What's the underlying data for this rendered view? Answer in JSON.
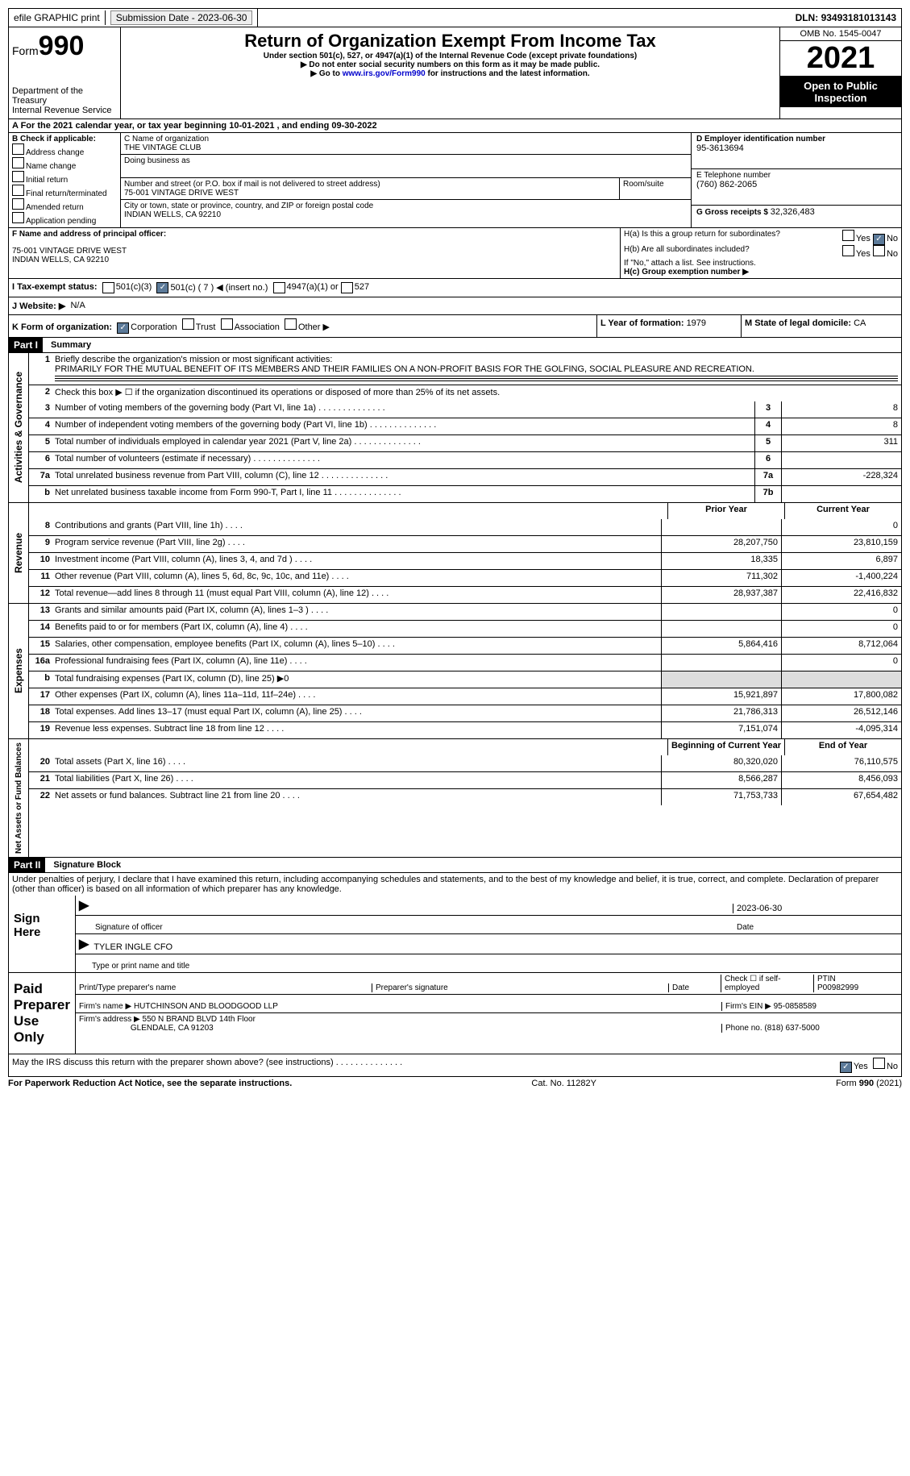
{
  "topbar": {
    "efile": "efile GRAPHIC print",
    "submission_label": "Submission Date - ",
    "submission_date": "2023-06-30",
    "dln_label": "DLN: ",
    "dln": "93493181013143"
  },
  "header": {
    "form_prefix": "Form",
    "form_no": "990",
    "dept": "Department of the Treasury",
    "irs": "Internal Revenue Service",
    "title": "Return of Organization Exempt From Income Tax",
    "subtitle": "Under section 501(c), 527, or 4947(a)(1) of the Internal Revenue Code (except private foundations)",
    "warn1": "▶ Do not enter social security numbers on this form as it may be made public.",
    "warn2_pre": "▶ Go to ",
    "warn2_link": "www.irs.gov/Form990",
    "warn2_post": " for instructions and the latest information.",
    "omb": "OMB No. 1545-0047",
    "year": "2021",
    "open": "Open to Public Inspection"
  },
  "periodA": {
    "text_a": "A For the 2021 calendar year, or tax year beginning ",
    "begin": "10-01-2021",
    "text_b": " , and ending ",
    "end": "09-30-2022"
  },
  "boxB": {
    "label": "B Check if applicable:",
    "items": [
      "Address change",
      "Name change",
      "Initial return",
      "Final return/terminated",
      "Amended return",
      "Application pending"
    ]
  },
  "boxC": {
    "name_label": "C Name of organization",
    "name": "THE VINTAGE CLUB",
    "dba": "Doing business as",
    "addr_label": "Number and street (or P.O. box if mail is not delivered to street address)",
    "room": "Room/suite",
    "addr": "75-001 VINTAGE DRIVE WEST",
    "city_label": "City or town, state or province, country, and ZIP or foreign postal code",
    "city": "INDIAN WELLS, CA  92210"
  },
  "boxD": {
    "label": "D Employer identification number",
    "val": "95-3613694"
  },
  "boxE": {
    "label": "E Telephone number",
    "val": "(760) 862-2065"
  },
  "boxG": {
    "label": "G Gross receipts $ ",
    "val": "32,326,483"
  },
  "boxF": {
    "label": "F  Name and address of principal officer:",
    "l1": "75-001 VINTAGE DRIVE WEST",
    "l2": "INDIAN WELLS, CA  92210"
  },
  "boxH": {
    "a": "H(a)  Is this a group return for subordinates?",
    "b": "H(b)  Are all subordinates included?",
    "note": "If \"No,\" attach a list. See instructions.",
    "c": "H(c)  Group exemption number ▶",
    "yes": "Yes",
    "no": "No"
  },
  "boxI": {
    "label": "I  Tax-exempt status:",
    "o1": "501(c)(3)",
    "o2": "501(c) ( 7 ) ◀ (insert no.)",
    "o3": "4947(a)(1) or",
    "o4": "527"
  },
  "boxJ": {
    "label": "J  Website: ▶",
    "val": "N/A"
  },
  "boxK": {
    "label": "K Form of organization:",
    "o1": "Corporation",
    "o2": "Trust",
    "o3": "Association",
    "o4": "Other ▶"
  },
  "boxL": {
    "label": "L Year of formation: ",
    "val": "1979"
  },
  "boxM": {
    "label": "M State of legal domicile: ",
    "val": "CA"
  },
  "part1": {
    "hdr": "Part I",
    "title": "Summary",
    "l1_label": "Briefly describe the organization's mission or most significant activities:",
    "l1_text": "PRIMARILY FOR THE MUTUAL BENEFIT OF ITS MEMBERS AND THEIR FAMILIES ON A NON-PROFIT BASIS FOR THE GOLFING, SOCIAL PLEASURE AND RECREATION.",
    "l2": "Check this box ▶ ☐  if the organization discontinued its operations or disposed of more than 25% of its net assets.",
    "tabs": {
      "ag": "Activities & Governance",
      "rev": "Revenue",
      "exp": "Expenses",
      "na": "Net Assets or Fund Balances"
    },
    "cols": {
      "prior": "Prior Year",
      "curr": "Current Year",
      "boy": "Beginning of Current Year",
      "eoy": "End of Year"
    },
    "rows_ag": [
      {
        "n": "3",
        "t": "Number of voting members of the governing body (Part VI, line 1a)",
        "box": "3",
        "v": "8"
      },
      {
        "n": "4",
        "t": "Number of independent voting members of the governing body (Part VI, line 1b)",
        "box": "4",
        "v": "8"
      },
      {
        "n": "5",
        "t": "Total number of individuals employed in calendar year 2021 (Part V, line 2a)",
        "box": "5",
        "v": "311"
      },
      {
        "n": "6",
        "t": "Total number of volunteers (estimate if necessary)",
        "box": "6",
        "v": ""
      },
      {
        "n": "7a",
        "t": "Total unrelated business revenue from Part VIII, column (C), line 12",
        "box": "7a",
        "v": "-228,324"
      },
      {
        "n": "b",
        "t": "Net unrelated business taxable income from Form 990-T, Part I, line 11",
        "box": "7b",
        "v": ""
      }
    ],
    "rows_rev": [
      {
        "n": "8",
        "t": "Contributions and grants (Part VIII, line 1h)",
        "p": "",
        "c": "0"
      },
      {
        "n": "9",
        "t": "Program service revenue (Part VIII, line 2g)",
        "p": "28,207,750",
        "c": "23,810,159"
      },
      {
        "n": "10",
        "t": "Investment income (Part VIII, column (A), lines 3, 4, and 7d )",
        "p": "18,335",
        "c": "6,897"
      },
      {
        "n": "11",
        "t": "Other revenue (Part VIII, column (A), lines 5, 6d, 8c, 9c, 10c, and 11e)",
        "p": "711,302",
        "c": "-1,400,224"
      },
      {
        "n": "12",
        "t": "Total revenue—add lines 8 through 11 (must equal Part VIII, column (A), line 12)",
        "p": "28,937,387",
        "c": "22,416,832"
      }
    ],
    "rows_exp": [
      {
        "n": "13",
        "t": "Grants and similar amounts paid (Part IX, column (A), lines 1–3 )",
        "p": "",
        "c": "0"
      },
      {
        "n": "14",
        "t": "Benefits paid to or for members (Part IX, column (A), line 4)",
        "p": "",
        "c": "0"
      },
      {
        "n": "15",
        "t": "Salaries, other compensation, employee benefits (Part IX, column (A), lines 5–10)",
        "p": "5,864,416",
        "c": "8,712,064"
      },
      {
        "n": "16a",
        "t": "Professional fundraising fees (Part IX, column (A), line 11e)",
        "p": "",
        "c": "0"
      },
      {
        "n": "b",
        "t": "Total fundraising expenses (Part IX, column (D), line 25) ▶0",
        "shade": true
      },
      {
        "n": "17",
        "t": "Other expenses (Part IX, column (A), lines 11a–11d, 11f–24e)",
        "p": "15,921,897",
        "c": "17,800,082"
      },
      {
        "n": "18",
        "t": "Total expenses. Add lines 13–17 (must equal Part IX, column (A), line 25)",
        "p": "21,786,313",
        "c": "26,512,146"
      },
      {
        "n": "19",
        "t": "Revenue less expenses. Subtract line 18 from line 12",
        "p": "7,151,074",
        "c": "-4,095,314"
      }
    ],
    "rows_na": [
      {
        "n": "20",
        "t": "Total assets (Part X, line 16)",
        "p": "80,320,020",
        "c": "76,110,575"
      },
      {
        "n": "21",
        "t": "Total liabilities (Part X, line 26)",
        "p": "8,566,287",
        "c": "8,456,093"
      },
      {
        "n": "22",
        "t": "Net assets or fund balances. Subtract line 21 from line 20",
        "p": "71,753,733",
        "c": "67,654,482"
      }
    ]
  },
  "part2": {
    "hdr": "Part II",
    "title": "Signature Block",
    "decl": "Under penalties of perjury, I declare that I have examined this return, including accompanying schedules and statements, and to the best of my knowledge and belief, it is true, correct, and complete. Declaration of preparer (other than officer) is based on all information of which preparer has any knowledge.",
    "sign_here": "Sign Here",
    "sig_officer": "Signature of officer",
    "sig_date": "2023-06-30",
    "date": "Date",
    "officer_name": "TYLER INGLE  CFO",
    "type_name": "Type or print name and title",
    "paid": "Paid Preparer Use Only",
    "pp_name": "Print/Type preparer's name",
    "pp_sig": "Preparer's signature",
    "pp_date": "Date",
    "pp_chk": "Check ☐ if self-employed",
    "ptin_l": "PTIN",
    "ptin": "P00982999",
    "firm_name_l": "Firm's name    ▶ ",
    "firm_name": "HUTCHINSON AND BLOODGOOD LLP",
    "firm_ein_l": "Firm's EIN ▶ ",
    "firm_ein": "95-0858589",
    "firm_addr_l": "Firm's address ▶ ",
    "firm_addr1": "550 N BRAND BLVD 14th Floor",
    "firm_addr2": "GLENDALE, CA  91203",
    "phone_l": "Phone no. ",
    "phone": "(818) 637-5000",
    "discuss": "May the IRS discuss this return with the preparer shown above? (see instructions)",
    "yes": "Yes",
    "no": "No"
  },
  "footer": {
    "pra": "For Paperwork Reduction Act Notice, see the separate instructions.",
    "cat": "Cat. No. 11282Y",
    "form": "Form 990 (2021)"
  }
}
